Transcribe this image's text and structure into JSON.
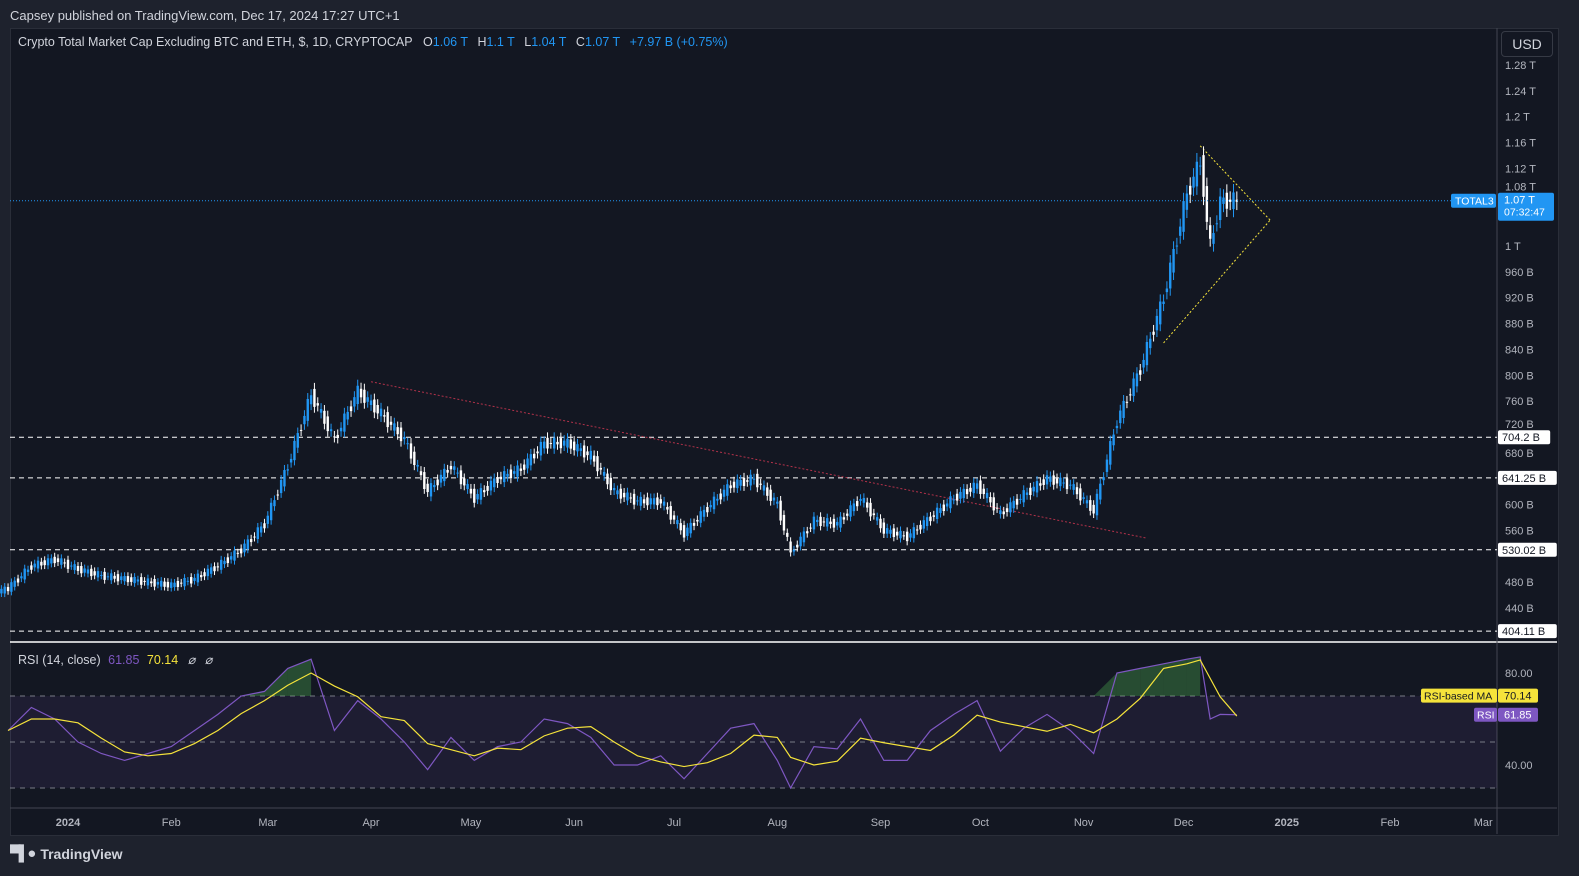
{
  "publisher_line": "Capsey published on TradingView.com, Dec 17, 2024 17:27 UTC+1",
  "legend": {
    "title": "Crypto Total Market Cap Excluding BTC and ETH, $, 1D, CRYPTOCAP",
    "o_label": "O",
    "o": "1.06 T",
    "h_label": "H",
    "h": "1.1 T",
    "l_label": "L",
    "l": "1.04 T",
    "c_label": "C",
    "c": "1.07 T",
    "change": "+7.97 B (+0.75%)"
  },
  "currency_button": "USD",
  "symbol_tag": "TOTAL3",
  "last_price_label": "1.07 T",
  "countdown": "07:32:47",
  "rsi_legend": {
    "title": "RSI (14, close)",
    "rsi": "61.85",
    "ma": "70.14",
    "icons": [
      "eye-off-icon",
      "eye-off-icon"
    ]
  },
  "rsi_tags": {
    "ma_label": "RSI-based MA",
    "ma_value": "70.14",
    "rsi_label": "RSI",
    "rsi_value": "61.85"
  },
  "footer_brand": "TradingView",
  "colors": {
    "background": "#131722",
    "up": "#2196f3",
    "down": "#ffffff",
    "rsi": "#7e57c2",
    "rsi_ma": "#f5e33b",
    "trend_red": "#b2324a",
    "triangle": "#f5e33b",
    "accent": "#2196f3"
  },
  "chart_data": [
    {
      "type": "candlestick",
      "title": "Crypto Total Market Cap Excluding BTC and ETH, $, 1D, CRYPTOCAP",
      "unit": "B USD",
      "ylim": [
        404,
        1300
      ],
      "y_ticks": [
        "1.28 T",
        "1.24 T",
        "1.2 T",
        "1.16 T",
        "1.12 T",
        "1.08 T",
        "1 T",
        "960 B",
        "920 B",
        "880 B",
        "840 B",
        "800 B",
        "760 B",
        "720 B",
        "680 B",
        "600 B",
        "560 B",
        "480 B",
        "440 B"
      ],
      "y_tick_values": [
        1280,
        1240,
        1200,
        1160,
        1120,
        1080,
        1000,
        960,
        920,
        880,
        840,
        800,
        760,
        720,
        680,
        600,
        560,
        480,
        440
      ],
      "x_ticks": [
        "2024",
        "Feb",
        "Mar",
        "Apr",
        "May",
        "Jun",
        "Jul",
        "Aug",
        "Sep",
        "Oct",
        "Nov",
        "Dec",
        "2025",
        "Feb",
        "Mar"
      ],
      "x_tick_dates": [
        "2024-01-01",
        "2024-02-01",
        "2024-03-01",
        "2024-04-01",
        "2024-05-01",
        "2024-06-01",
        "2024-07-01",
        "2024-08-01",
        "2024-09-01",
        "2024-10-01",
        "2024-11-01",
        "2024-12-01",
        "2025-01-01",
        "2025-02-01",
        "2025-03-01"
      ],
      "horizontal_levels": [
        {
          "value": 704.2,
          "label": "704.2 B"
        },
        {
          "value": 641.25,
          "label": "641.25 B"
        },
        {
          "value": 530.02,
          "label": "530.02 B"
        },
        {
          "value": 404.11,
          "label": "404.11 B"
        }
      ],
      "trendlines": [
        {
          "color": "red",
          "points": [
            [
              "2024-04-01",
              790
            ],
            [
              "2024-11-20",
              548
            ]
          ]
        },
        {
          "color": "yellow",
          "points": [
            [
              "2024-12-06",
              1155
            ],
            [
              "2024-12-27",
              1040
            ]
          ]
        },
        {
          "color": "yellow",
          "points": [
            [
              "2024-11-25",
              850
            ],
            [
              "2024-12-27",
              1040
            ]
          ]
        }
      ],
      "last_price": 1070,
      "dates": [
        "2023-12-14",
        "2023-12-21",
        "2023-12-28",
        "2024-01-04",
        "2024-01-11",
        "2024-01-18",
        "2024-01-25",
        "2024-02-01",
        "2024-02-08",
        "2024-02-15",
        "2024-02-22",
        "2024-02-29",
        "2024-03-07",
        "2024-03-14",
        "2024-03-21",
        "2024-03-28",
        "2024-04-04",
        "2024-04-11",
        "2024-04-18",
        "2024-04-25",
        "2024-05-02",
        "2024-05-09",
        "2024-05-16",
        "2024-05-23",
        "2024-05-30",
        "2024-06-06",
        "2024-06-13",
        "2024-06-20",
        "2024-06-27",
        "2024-07-04",
        "2024-07-11",
        "2024-07-18",
        "2024-07-25",
        "2024-08-01",
        "2024-08-05",
        "2024-08-12",
        "2024-08-19",
        "2024-08-26",
        "2024-09-02",
        "2024-09-09",
        "2024-09-16",
        "2024-09-23",
        "2024-09-30",
        "2024-10-07",
        "2024-10-14",
        "2024-10-21",
        "2024-10-28",
        "2024-11-04",
        "2024-11-11",
        "2024-11-18",
        "2024-11-25",
        "2024-12-02",
        "2024-12-06",
        "2024-12-09",
        "2024-12-12",
        "2024-12-17"
      ],
      "close": [
        470,
        505,
        515,
        500,
        490,
        485,
        480,
        475,
        485,
        505,
        530,
        570,
        660,
        770,
        700,
        775,
        740,
        700,
        620,
        660,
        610,
        640,
        655,
        695,
        695,
        675,
        620,
        605,
        605,
        555,
        595,
        630,
        640,
        600,
        525,
        575,
        570,
        610,
        560,
        550,
        580,
        610,
        630,
        585,
        615,
        640,
        630,
        590,
        730,
        810,
        920,
        1080,
        1130,
        1000,
        1070,
        1070
      ]
    },
    {
      "type": "line",
      "title": "RSI (14, close)",
      "ylim": [
        22,
        92
      ],
      "y_ticks": [
        "80.00",
        "40.00"
      ],
      "y_tick_values": [
        80,
        40
      ],
      "bands": [
        70,
        50,
        30
      ],
      "series": [
        {
          "name": "RSI",
          "values": [
            55,
            65,
            60,
            50,
            45,
            42,
            45,
            48,
            55,
            62,
            70,
            72,
            82,
            86,
            55,
            68,
            60,
            50,
            38,
            52,
            42,
            48,
            50,
            60,
            58,
            52,
            40,
            40,
            44,
            34,
            45,
            56,
            58,
            42,
            30,
            48,
            47,
            60,
            42,
            42,
            55,
            62,
            68,
            46,
            56,
            62,
            55,
            45,
            80,
            82,
            84,
            86,
            87,
            60,
            62,
            61.85
          ]
        },
        {
          "name": "RSI-based MA",
          "last": 70.14
        }
      ]
    }
  ]
}
